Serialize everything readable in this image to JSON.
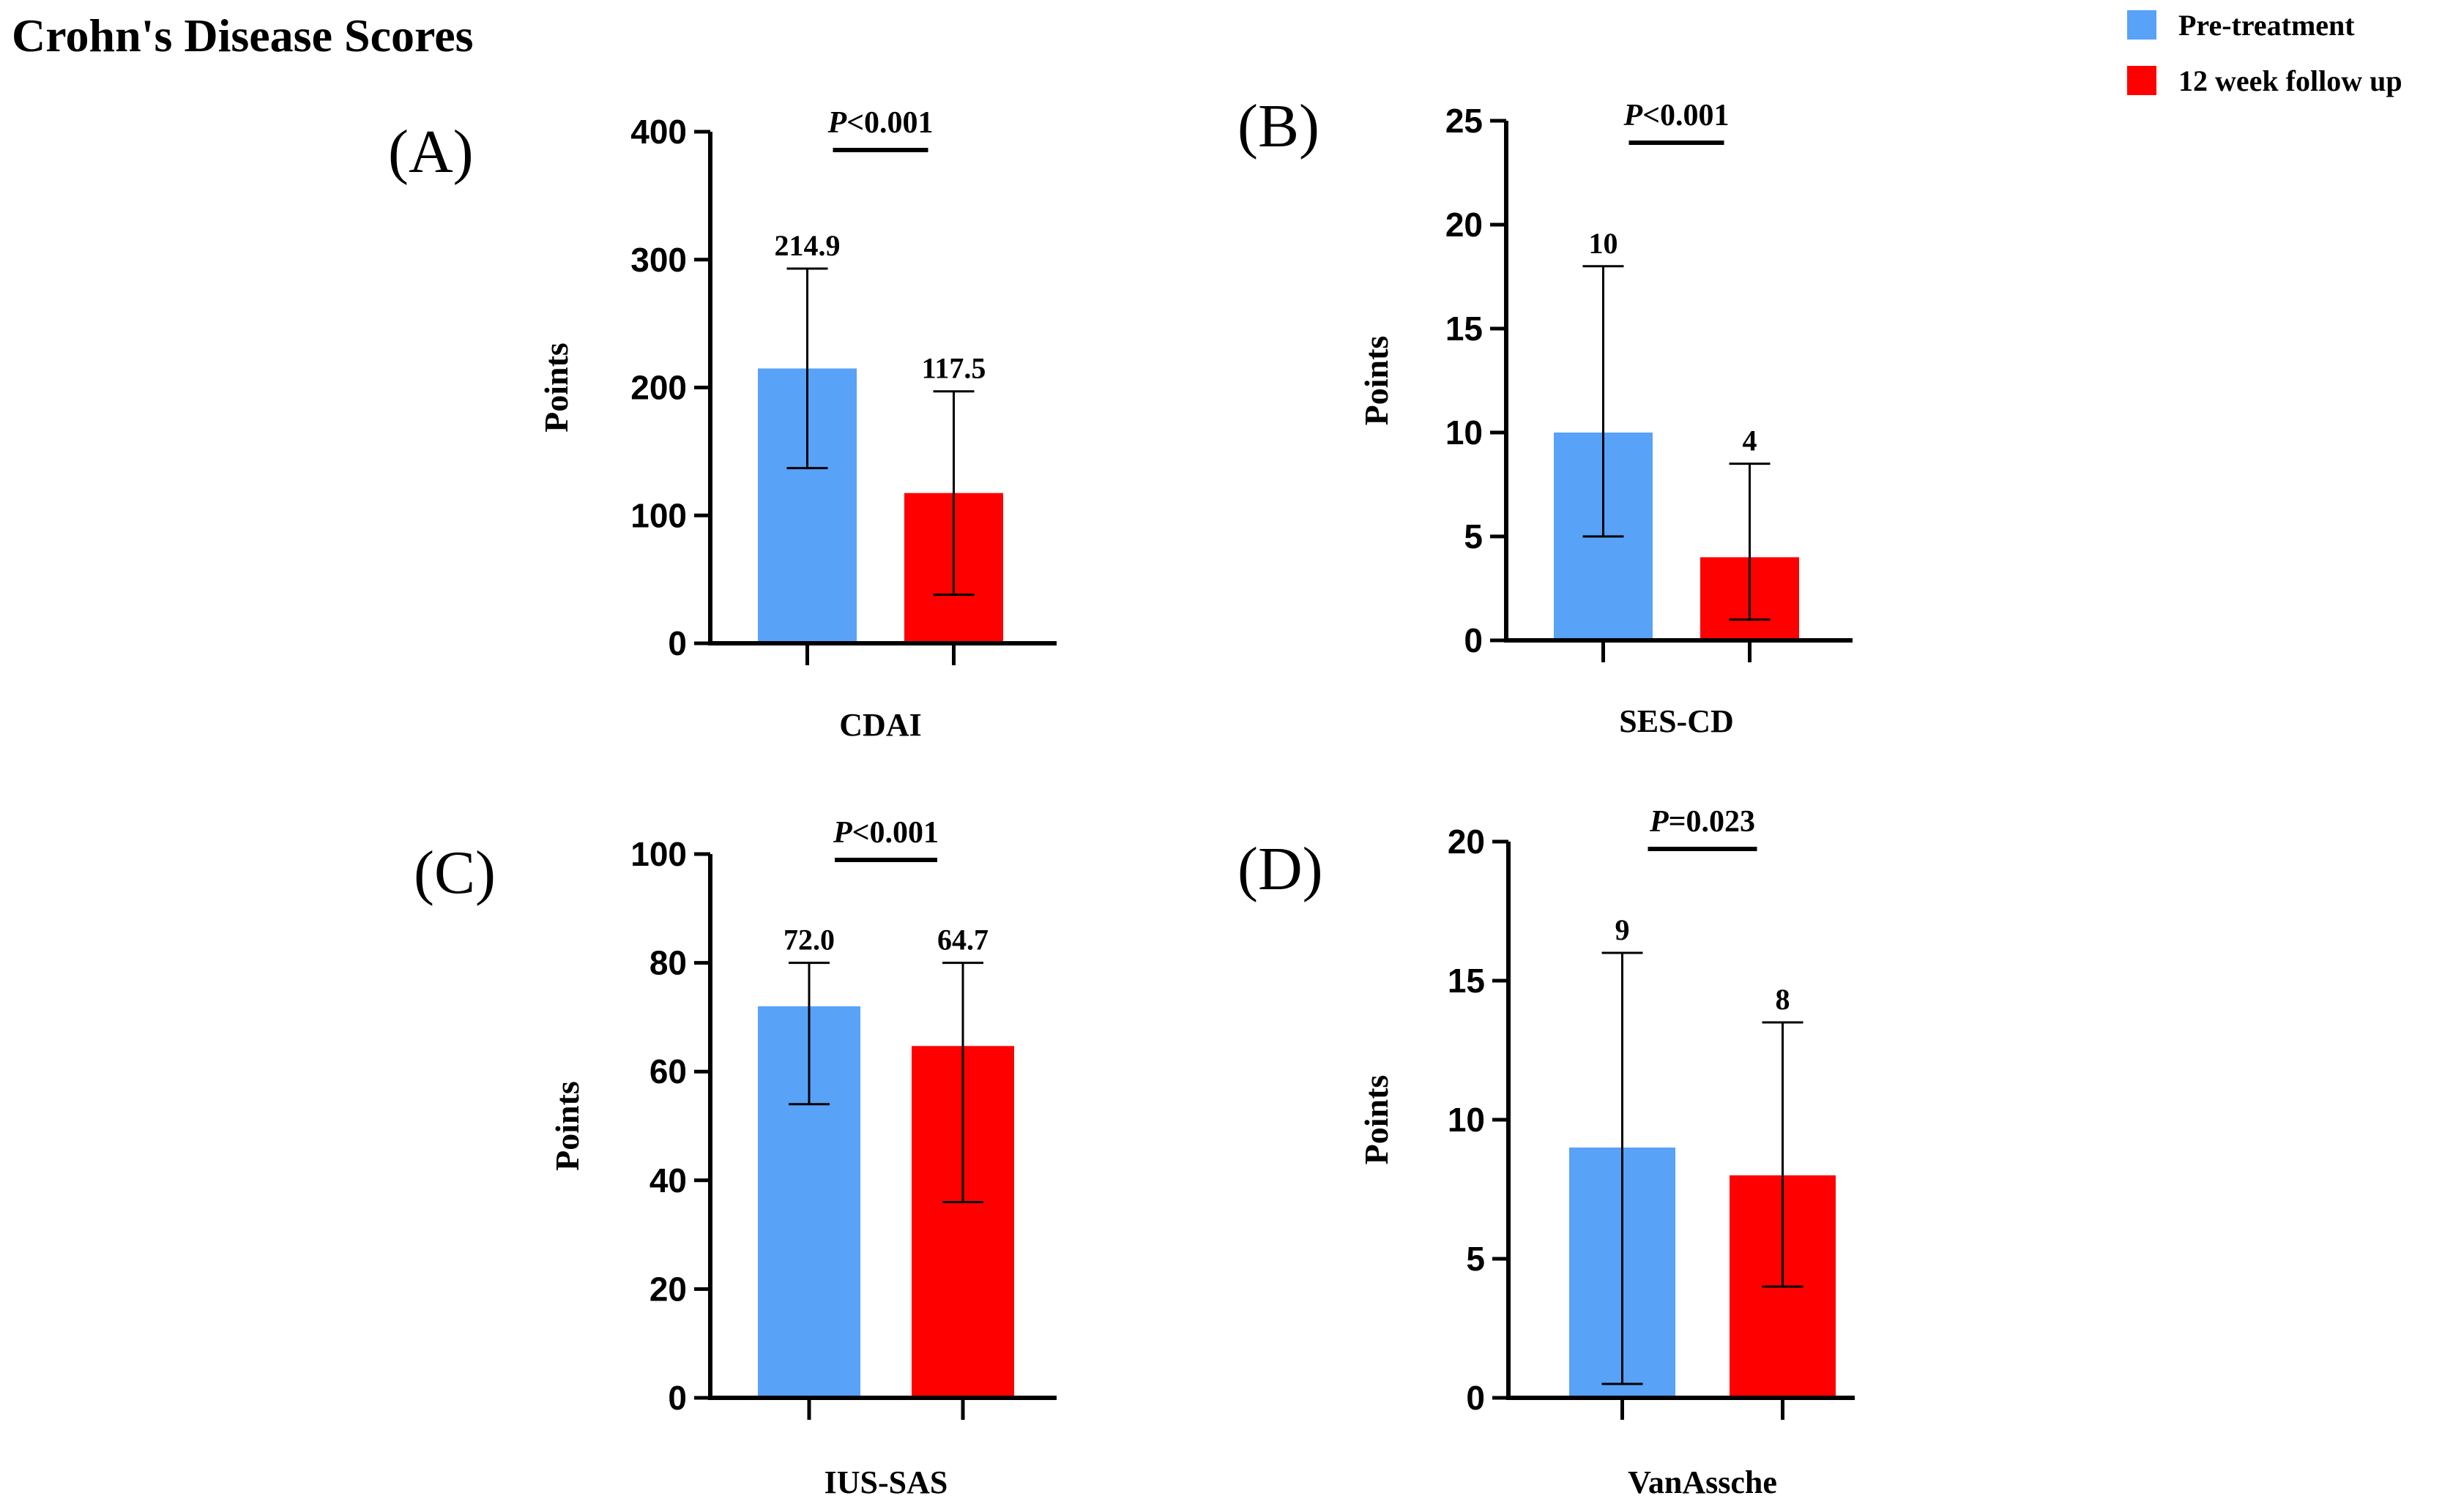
{
  "figure": {
    "title": "Crohn's Disease Scores",
    "legend": {
      "placement": "top-right",
      "entries": [
        {
          "label": "Pre-treatment",
          "color": "#58a2f8"
        },
        {
          "label": "12 week follow up",
          "color": "#ff0000"
        }
      ]
    }
  },
  "chart_data": [
    {
      "type": "bar",
      "panel_label": "(A)",
      "title": "",
      "categories": [
        "Pre-treatment",
        "12 week follow up"
      ],
      "values": [
        214.9,
        117.5
      ],
      "value_labels": [
        "214.9",
        "117.5"
      ],
      "error_bars": [
        [
          137,
          293
        ],
        [
          38,
          197
        ]
      ],
      "xlabel": "CDAI",
      "ylabel": "Points",
      "ylim": [
        0,
        400
      ],
      "yticks": [
        0,
        100,
        200,
        300,
        400
      ],
      "significance": {
        "prefix": "P",
        "text": "<0.001"
      },
      "grid": false
    },
    {
      "type": "bar",
      "panel_label": "(B)",
      "title": "",
      "categories": [
        "Pre-treatment",
        "12 week follow up"
      ],
      "values": [
        10,
        4
      ],
      "value_labels": [
        "10",
        "4"
      ],
      "error_bars": [
        [
          5,
          18
        ],
        [
          1,
          8.5
        ]
      ],
      "xlabel": "SES-CD",
      "ylabel": "Points",
      "ylim": [
        0,
        25
      ],
      "yticks": [
        0,
        5,
        10,
        15,
        20,
        25
      ],
      "significance": {
        "prefix": "P",
        "text": "<0.001"
      },
      "grid": false
    },
    {
      "type": "bar",
      "panel_label": "(C)",
      "title": "",
      "categories": [
        "Pre-treatment",
        "12 week follow up"
      ],
      "values": [
        72.0,
        64.7
      ],
      "value_labels": [
        "72.0",
        "64.7"
      ],
      "error_bars": [
        [
          54,
          80
        ],
        [
          36,
          80
        ]
      ],
      "xlabel": "IUS-SAS",
      "ylabel": "Points",
      "ylim": [
        0,
        100
      ],
      "yticks": [
        0,
        20,
        40,
        60,
        80,
        100
      ],
      "significance": {
        "prefix": "P",
        "text": "<0.001"
      },
      "grid": false
    },
    {
      "type": "bar",
      "panel_label": "(D)",
      "title": "",
      "categories": [
        "Pre-treatment",
        "12 week follow up"
      ],
      "values": [
        9,
        8
      ],
      "value_labels": [
        "9",
        "8"
      ],
      "error_bars": [
        [
          0.5,
          16
        ],
        [
          4,
          13.5
        ]
      ],
      "xlabel": "VanAssche",
      "ylabel": "Points",
      "ylim": [
        0,
        20
      ],
      "yticks": [
        0,
        5,
        10,
        15,
        20
      ],
      "significance": {
        "prefix": "P",
        "text": "=0.023"
      },
      "grid": false
    }
  ]
}
